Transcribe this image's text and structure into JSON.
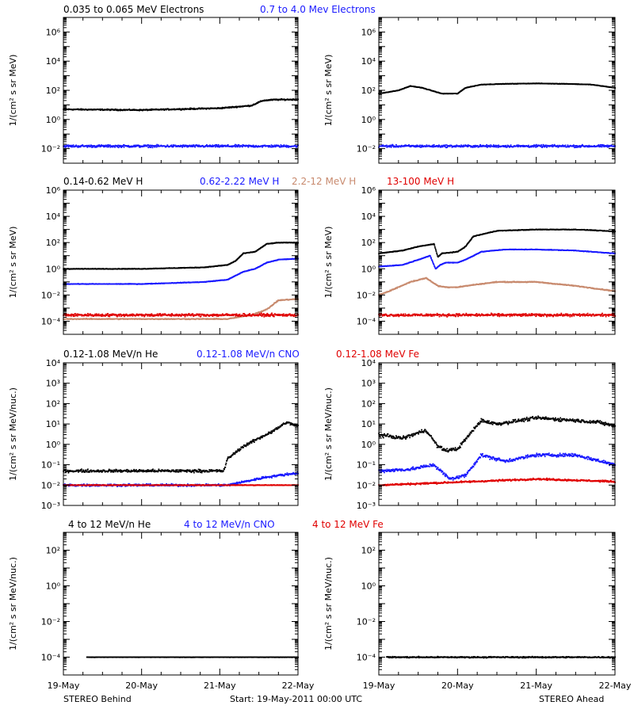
{
  "colors": {
    "black": "#000000",
    "blue": "#1a1aff",
    "tan": "#c88a6e",
    "red": "#e00000"
  },
  "header": {
    "row1": [
      {
        "text": "0.035 to 0.065 MeV Electrons",
        "color": "black"
      },
      {
        "text": "0.7 to 4.0 Mev Electrons",
        "color": "blue"
      }
    ],
    "row2": [
      {
        "text": "0.14-0.62 MeV H",
        "color": "black"
      },
      {
        "text": "0.62-2.22 MeV H",
        "color": "blue"
      },
      {
        "text": "2.2-12 MeV H",
        "color": "tan"
      },
      {
        "text": "13-100 MeV H",
        "color": "red"
      }
    ],
    "row3": [
      {
        "text": "0.12-1.08 MeV/n He",
        "color": "black"
      },
      {
        "text": "0.12-1.08 MeV/n CNO",
        "color": "blue"
      },
      {
        "text": "0.12-1.08 MeV Fe",
        "color": "red"
      }
    ],
    "row4": [
      {
        "text": "4 to 12 MeV/n He",
        "color": "black"
      },
      {
        "text": "4 to 12 MeV/n CNO",
        "color": "blue"
      },
      {
        "text": "4 to 12 MeV Fe",
        "color": "red"
      }
    ]
  },
  "footer": {
    "left": "STEREO Behind",
    "center": "Start: 19-May-2011 00:00 UTC",
    "right": "STEREO Ahead"
  },
  "chart_data": [
    {
      "type": "scatter",
      "panel": "row1-left",
      "spacecraft": "STEREO Behind",
      "ylabel": "1/(cm² s sr MeV)",
      "yscale": "log",
      "ylim": [
        0.001,
        10000000
      ],
      "yticks": [
        "10⁻²",
        "10⁰",
        "10²",
        "10⁴",
        "10⁶"
      ],
      "ytick_values": [
        0.01,
        1,
        100,
        10000,
        1000000
      ],
      "xlabel": "",
      "xlim": [
        0,
        3
      ],
      "xticks": [
        "19-May",
        "20-May",
        "21-May",
        "22-May"
      ],
      "series": [
        {
          "name": "0.035 to 0.065 MeV Electrons",
          "color": "black",
          "spread": 0.06,
          "x": [
            0,
            1,
            2,
            2.4,
            2.55,
            2.7,
            3
          ],
          "y": [
            5,
            4.5,
            6,
            9,
            20,
            23,
            24
          ]
        },
        {
          "name": "0.7 to 4.0 Mev Electrons",
          "color": "blue",
          "spread": 0.12,
          "x": [
            0,
            3
          ],
          "y": [
            0.015,
            0.015
          ]
        }
      ]
    },
    {
      "type": "scatter",
      "panel": "row1-right",
      "spacecraft": "STEREO Ahead",
      "ylabel": "1/(cm² s sr MeV)",
      "yscale": "log",
      "ylim": [
        0.001,
        10000000
      ],
      "yticks": [
        "10⁻²",
        "10⁰",
        "10²",
        "10⁴",
        "10⁶"
      ],
      "ytick_values": [
        0.01,
        1,
        100,
        10000,
        1000000
      ],
      "xlabel": "",
      "xlim": [
        0,
        3
      ],
      "xticks": [
        "19-May",
        "20-May",
        "21-May",
        "22-May"
      ],
      "series": [
        {
          "name": "0.035 to 0.065 MeV Electrons",
          "color": "black",
          "spread": 0.02,
          "x": [
            0,
            0.25,
            0.4,
            0.55,
            0.8,
            1.0,
            1.1,
            1.3,
            1.6,
            2.0,
            2.4,
            2.7,
            3
          ],
          "y": [
            60,
            100,
            200,
            150,
            60,
            60,
            150,
            250,
            280,
            300,
            280,
            250,
            150
          ]
        },
        {
          "name": "0.7 to 4.0 Mev Electrons",
          "color": "blue",
          "spread": 0.12,
          "x": [
            0,
            3
          ],
          "y": [
            0.015,
            0.015
          ]
        }
      ]
    },
    {
      "type": "scatter",
      "panel": "row2-left",
      "spacecraft": "STEREO Behind",
      "ylabel": "1/(cm² s sr MeV)",
      "yscale": "log",
      "ylim": [
        1e-05,
        1000000
      ],
      "yticks": [
        "10⁻⁴",
        "10⁻²",
        "10⁰",
        "10²",
        "10⁴",
        "10⁶"
      ],
      "ytick_values": [
        0.0001,
        0.01,
        1,
        100,
        10000,
        1000000
      ],
      "xlabel": "",
      "xlim": [
        0,
        3
      ],
      "xticks": [
        "19-May",
        "20-May",
        "21-May",
        "22-May"
      ],
      "series": [
        {
          "name": "0.14-0.62 MeV H",
          "color": "black",
          "spread": 0.03,
          "x": [
            0,
            1,
            1.8,
            2.1,
            2.2,
            2.3,
            2.45,
            2.6,
            2.75,
            3
          ],
          "y": [
            1,
            1,
            1.3,
            2,
            4,
            15,
            20,
            80,
            100,
            100
          ]
        },
        {
          "name": "0.62-2.22 MeV H",
          "color": "blue",
          "spread": 0.03,
          "x": [
            0,
            1,
            1.8,
            2.1,
            2.3,
            2.45,
            2.6,
            2.75,
            3
          ],
          "y": [
            0.07,
            0.07,
            0.1,
            0.15,
            0.6,
            1.0,
            3,
            5,
            6
          ]
        },
        {
          "name": "2.2-12 MeV H",
          "color": "tan",
          "spread": 0.05,
          "x": [
            0,
            2.1,
            2.4,
            2.6,
            2.75,
            3
          ],
          "y": [
            0.00015,
            0.00015,
            0.0003,
            0.0008,
            0.004,
            0.005
          ]
        },
        {
          "name": "13-100 MeV H",
          "color": "red",
          "spread": 0.15,
          "x": [
            0,
            3
          ],
          "y": [
            0.0003,
            0.0003
          ]
        }
      ]
    },
    {
      "type": "scatter",
      "panel": "row2-right",
      "spacecraft": "STEREO Ahead",
      "ylabel": "1/(cm² s sr MeV)",
      "yscale": "log",
      "ylim": [
        1e-05,
        1000000
      ],
      "yticks": [
        "10⁻⁴",
        "10⁻²",
        "10⁰",
        "10²",
        "10⁴",
        "10⁶"
      ],
      "ytick_values": [
        0.0001,
        0.01,
        1,
        100,
        10000,
        1000000
      ],
      "xlabel": "",
      "xlim": [
        0,
        3
      ],
      "xticks": [
        "19-May",
        "20-May",
        "21-May",
        "22-May"
      ],
      "series": [
        {
          "name": "0.14-0.62 MeV H",
          "color": "black",
          "spread": 0.03,
          "x": [
            0,
            0.3,
            0.5,
            0.7,
            0.75,
            0.8,
            1.0,
            1.1,
            1.2,
            1.5,
            2.0,
            2.5,
            2.7,
            3
          ],
          "y": [
            15,
            25,
            50,
            80,
            8,
            15,
            20,
            50,
            300,
            800,
            1000,
            1000,
            900,
            700
          ]
        },
        {
          "name": "0.62-2.22 MeV H",
          "color": "blue",
          "spread": 0.03,
          "x": [
            0,
            0.3,
            0.5,
            0.65,
            0.72,
            0.78,
            0.85,
            1.0,
            1.1,
            1.3,
            1.6,
            2.0,
            2.5,
            2.7,
            3
          ],
          "y": [
            1.5,
            2,
            5,
            10,
            1,
            2,
            3,
            3,
            5,
            20,
            30,
            30,
            25,
            20,
            15
          ]
        },
        {
          "name": "2.2-12 MeV H",
          "color": "tan",
          "spread": 0.05,
          "x": [
            0,
            0.2,
            0.4,
            0.6,
            0.75,
            0.85,
            1.0,
            1.2,
            1.5,
            2.0,
            2.5,
            3
          ],
          "y": [
            0.01,
            0.03,
            0.1,
            0.2,
            0.05,
            0.04,
            0.04,
            0.06,
            0.1,
            0.1,
            0.05,
            0.02
          ]
        },
        {
          "name": "13-100 MeV H",
          "color": "red",
          "spread": 0.15,
          "x": [
            0,
            3
          ],
          "y": [
            0.0003,
            0.0003
          ]
        }
      ]
    },
    {
      "type": "scatter",
      "panel": "row3-left",
      "spacecraft": "STEREO Behind",
      "ylabel": "1/(cm² s sr MeV/nuc.)",
      "yscale": "log",
      "ylim": [
        0.001,
        10000
      ],
      "yticks": [
        "10⁻³",
        "10⁻²",
        "10⁻¹",
        "10⁰",
        "10¹",
        "10²",
        "10³",
        "10⁴"
      ],
      "ytick_values": [
        0.001,
        0.01,
        0.1,
        1,
        10,
        100,
        1000,
        10000
      ],
      "xlabel": "",
      "xlim": [
        0,
        3
      ],
      "xticks": [
        "19-May",
        "20-May",
        "21-May",
        "22-May"
      ],
      "series": [
        {
          "name": "0.12-1.08 MeV/n He",
          "color": "black",
          "spread": 0.1,
          "x": [
            0,
            2.05,
            2.1,
            2.3,
            2.5,
            2.7,
            2.85,
            3
          ],
          "y": [
            0.05,
            0.05,
            0.2,
            0.8,
            2,
            5,
            12,
            8
          ]
        },
        {
          "name": "0.12-1.08 MeV/n CNO",
          "color": "blue",
          "spread": 0.08,
          "x": [
            0,
            2.1,
            2.6,
            3
          ],
          "y": [
            0.01,
            0.01,
            0.025,
            0.04
          ]
        },
        {
          "name": "0.12-1.08 MeV Fe",
          "color": "red",
          "spread": 0.02,
          "x": [
            0,
            3
          ],
          "y": [
            0.01,
            0.01
          ]
        }
      ]
    },
    {
      "type": "scatter",
      "panel": "row3-right",
      "spacecraft": "STEREO Ahead",
      "ylabel": "1/(cm² s sr MeV/nuc.)",
      "yscale": "log",
      "ylim": [
        0.001,
        10000
      ],
      "yticks": [
        "10⁻³",
        "10⁻²",
        "10⁻¹",
        "10⁰",
        "10¹",
        "10²",
        "10³",
        "10⁴"
      ],
      "ytick_values": [
        0.001,
        0.01,
        0.1,
        1,
        10,
        100,
        1000,
        10000
      ],
      "xlabel": "",
      "xlim": [
        0,
        3
      ],
      "xticks": [
        "19-May",
        "20-May",
        "21-May",
        "22-May"
      ],
      "series": [
        {
          "name": "0.12-1.08 MeV/n He",
          "color": "black",
          "spread": 0.12,
          "x": [
            0,
            0.3,
            0.6,
            0.75,
            0.85,
            1.0,
            1.15,
            1.3,
            1.5,
            2.0,
            2.5,
            2.8,
            3
          ],
          "y": [
            3,
            2,
            5,
            0.8,
            0.5,
            0.6,
            3,
            15,
            10,
            20,
            15,
            12,
            8
          ]
        },
        {
          "name": "0.12-1.08 MeV/n CNO",
          "color": "blue",
          "spread": 0.12,
          "x": [
            0,
            0.4,
            0.7,
            0.9,
            1.1,
            1.3,
            1.6,
            2.0,
            2.5,
            3
          ],
          "y": [
            0.05,
            0.06,
            0.1,
            0.02,
            0.03,
            0.3,
            0.15,
            0.3,
            0.3,
            0.1
          ]
        },
        {
          "name": "0.12-1.08 MeV Fe",
          "color": "red",
          "spread": 0.06,
          "x": [
            0,
            1.2,
            2.0,
            3
          ],
          "y": [
            0.01,
            0.015,
            0.02,
            0.015
          ]
        }
      ]
    },
    {
      "type": "scatter",
      "panel": "row4-left",
      "spacecraft": "STEREO Behind",
      "ylabel": "1/(cm² s sr MeV/nuc.)",
      "yscale": "log",
      "ylim": [
        1e-05,
        1000
      ],
      "yticks": [
        "10⁻⁴",
        "10⁻²",
        "10⁰",
        "10²"
      ],
      "ytick_values": [
        0.0001,
        0.01,
        1,
        100
      ],
      "xlabel": "",
      "xlim": [
        0,
        3
      ],
      "xticks": [
        "19-May",
        "20-May",
        "21-May",
        "22-May"
      ],
      "series": [
        {
          "name": "4 to 12 MeV/n He",
          "color": "black",
          "spread": 0.01,
          "x": [
            0.3,
            3
          ],
          "y": [
            0.0001,
            0.0001
          ]
        }
      ]
    },
    {
      "type": "scatter",
      "panel": "row4-right",
      "spacecraft": "STEREO Ahead",
      "ylabel": "1/(cm² s sr MeV/nuc.)",
      "yscale": "log",
      "ylim": [
        1e-05,
        1000
      ],
      "yticks": [
        "10⁻⁴",
        "10⁻²",
        "10⁰",
        "10²"
      ],
      "ytick_values": [
        0.0001,
        0.01,
        1,
        100
      ],
      "xlabel": "",
      "xlim": [
        0,
        3
      ],
      "xticks": [
        "19-May",
        "20-May",
        "21-May",
        "22-May"
      ],
      "series": [
        {
          "name": "4 to 12 MeV/n He",
          "color": "black",
          "spread": 0.05,
          "x": [
            0.1,
            3
          ],
          "y": [
            0.0001,
            0.0001
          ]
        }
      ]
    }
  ]
}
